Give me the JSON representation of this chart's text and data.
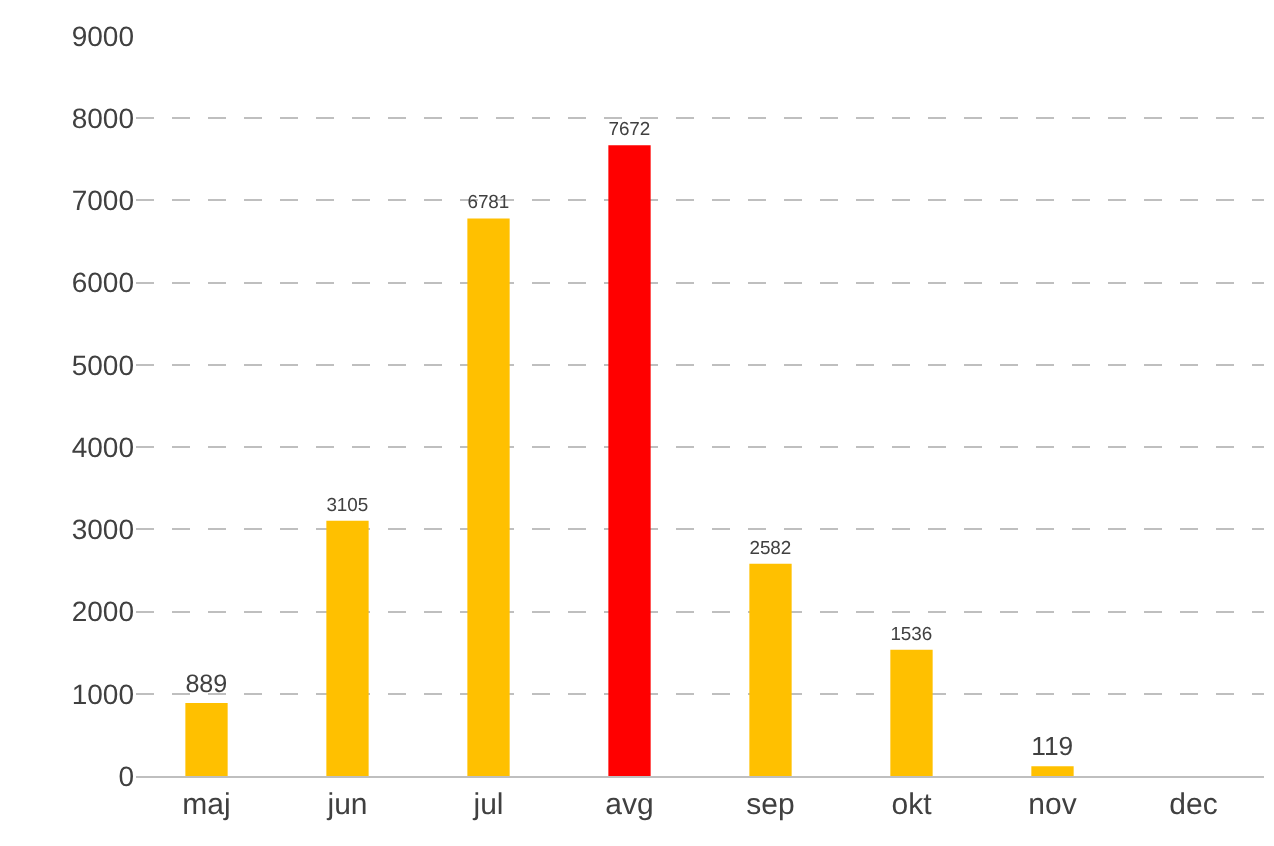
{
  "chart_data": {
    "type": "bar",
    "categories": [
      "maj",
      "jun",
      "jul",
      "avg",
      "sep",
      "okt",
      "nov",
      "dec"
    ],
    "values": [
      889,
      3105,
      6781,
      7672,
      2582,
      1536,
      119,
      null
    ],
    "colors": [
      "#ffc000",
      "#ffc000",
      "#ffc000",
      "#ff0000",
      "#ffc000",
      "#ffc000",
      "#ffc000",
      "#ffc000"
    ],
    "ylim": [
      0,
      9000
    ],
    "yticks": [
      0,
      1000,
      2000,
      3000,
      4000,
      5000,
      6000,
      7000,
      8000,
      9000
    ],
    "grid": "y",
    "data_labels": true,
    "legend": false
  }
}
